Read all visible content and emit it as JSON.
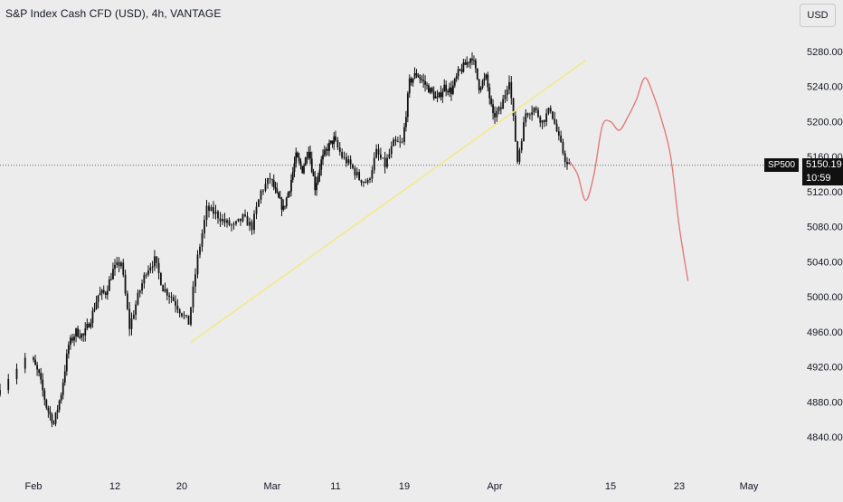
{
  "header": {
    "title": "S&P Index Cash CFD (USD), 4h, VANTAGE",
    "currency": "USD"
  },
  "price_tag": {
    "symbol": "SP500",
    "price": "5150.19",
    "countdown": "10:59"
  },
  "colors": {
    "background": "#ececec",
    "candle": "#111111",
    "trendline": "#f3e98a",
    "projection": "#e57373",
    "text": "#131722"
  },
  "chart_data": {
    "type": "candlestick",
    "title": "S&P Index Cash CFD (USD), 4h, VANTAGE",
    "ylim": [
      4820,
      5300
    ],
    "y_ticks": [
      "5280.00",
      "5240.00",
      "5200.00",
      "5160.00",
      "5120.00",
      "5080.00",
      "5040.00",
      "5000.00",
      "4960.00",
      "4920.00",
      "4880.00",
      "4840.00"
    ],
    "x_ticks": [
      "Feb",
      "12",
      "20",
      "Mar",
      "11",
      "19",
      "Apr",
      "15",
      "23",
      "May"
    ],
    "price_path": [
      [
        "Jan 31",
        4888
      ],
      [
        "Feb 1",
        4930
      ],
      [
        "Feb 2",
        4910
      ],
      [
        "Feb 3",
        4875
      ],
      [
        "Feb 4",
        4855
      ],
      [
        "Feb 5",
        4890
      ],
      [
        "Feb 6",
        4945
      ],
      [
        "Feb 7",
        4960
      ],
      [
        "Feb 8",
        4955
      ],
      [
        "Feb 9",
        4975
      ],
      [
        "Feb 10",
        5002
      ],
      [
        "Feb 11",
        5005
      ],
      [
        "Feb 12",
        5030
      ],
      [
        "Feb 13",
        5040
      ],
      [
        "Feb 14",
        4965
      ],
      [
        "Feb 15",
        5000
      ],
      [
        "Feb 16",
        5030
      ],
      [
        "Feb 17",
        5042
      ],
      [
        "Feb 18",
        5010
      ],
      [
        "Feb 19",
        5000
      ],
      [
        "Feb 20",
        4985
      ],
      [
        "Feb 21",
        4970
      ],
      [
        "Feb 22",
        5045
      ],
      [
        "Feb 23",
        5100
      ],
      [
        "Feb 24",
        5095
      ],
      [
        "Feb 25",
        5085
      ],
      [
        "Feb 26",
        5080
      ],
      [
        "Feb 27",
        5090
      ],
      [
        "Feb 28",
        5080
      ],
      [
        "Feb 29",
        5120
      ],
      [
        "Mar 1",
        5135
      ],
      [
        "Mar 2",
        5115
      ],
      [
        "Mar 3",
        5100
      ],
      [
        "Mar 4",
        5125
      ],
      [
        "Mar 5",
        5160
      ],
      [
        "Mar 6",
        5145
      ],
      [
        "Mar 7",
        5170
      ],
      [
        "Mar 8",
        5125
      ],
      [
        "Mar 9",
        5155
      ],
      [
        "Mar 10",
        5170
      ],
      [
        "Mar 11",
        5180
      ],
      [
        "Mar 12",
        5160
      ],
      [
        "Mar 13",
        5150
      ],
      [
        "Mar 14",
        5135
      ],
      [
        "Mar 15",
        5130
      ],
      [
        "Mar 16",
        5165
      ],
      [
        "Mar 17",
        5150
      ],
      [
        "Mar 18",
        5175
      ],
      [
        "Mar 19",
        5175
      ],
      [
        "Mar 20",
        5245
      ],
      [
        "Mar 21",
        5255
      ],
      [
        "Mar 22",
        5245
      ],
      [
        "Mar 23",
        5235
      ],
      [
        "Mar 24",
        5225
      ],
      [
        "Mar 25",
        5240
      ],
      [
        "Mar 26",
        5235
      ],
      [
        "Mar 27",
        5255
      ],
      [
        "Mar 28",
        5265
      ],
      [
        "Mar 29",
        5275
      ],
      [
        "Mar 30",
        5240
      ],
      [
        "Mar 31",
        5250
      ],
      [
        "Apr 1",
        5205
      ],
      [
        "Apr 2",
        5215
      ],
      [
        "Apr 3",
        5250
      ],
      [
        "Apr 4",
        5155
      ],
      [
        "Apr 5",
        5210
      ],
      [
        "Apr 6",
        5215
      ],
      [
        "Apr 7",
        5200
      ],
      [
        "Apr 8",
        5215
      ],
      [
        "Apr 9",
        5180
      ],
      [
        "Apr 10",
        5150
      ]
    ],
    "trendline": [
      [
        "Feb 21",
        4948
      ],
      [
        "Apr 12",
        5270
      ]
    ],
    "projection": [
      [
        "Apr 10",
        5155
      ],
      [
        "Apr 11",
        5140
      ],
      [
        "Apr 12",
        5110
      ],
      [
        "Apr 13",
        5140
      ],
      [
        "Apr 14",
        5195
      ],
      [
        "Apr 15",
        5200
      ],
      [
        "Apr 16",
        5190
      ],
      [
        "Apr 17",
        5205
      ],
      [
        "Apr 18",
        5225
      ],
      [
        "Apr 19",
        5250
      ],
      [
        "Apr 20",
        5230
      ],
      [
        "Apr 21",
        5200
      ],
      [
        "Apr 22",
        5160
      ],
      [
        "Apr 23",
        5080
      ],
      [
        "Apr 24",
        5018
      ]
    ],
    "current_price": 5150.19,
    "current_price_line": "dotted",
    "grid": false,
    "legend": "none"
  }
}
